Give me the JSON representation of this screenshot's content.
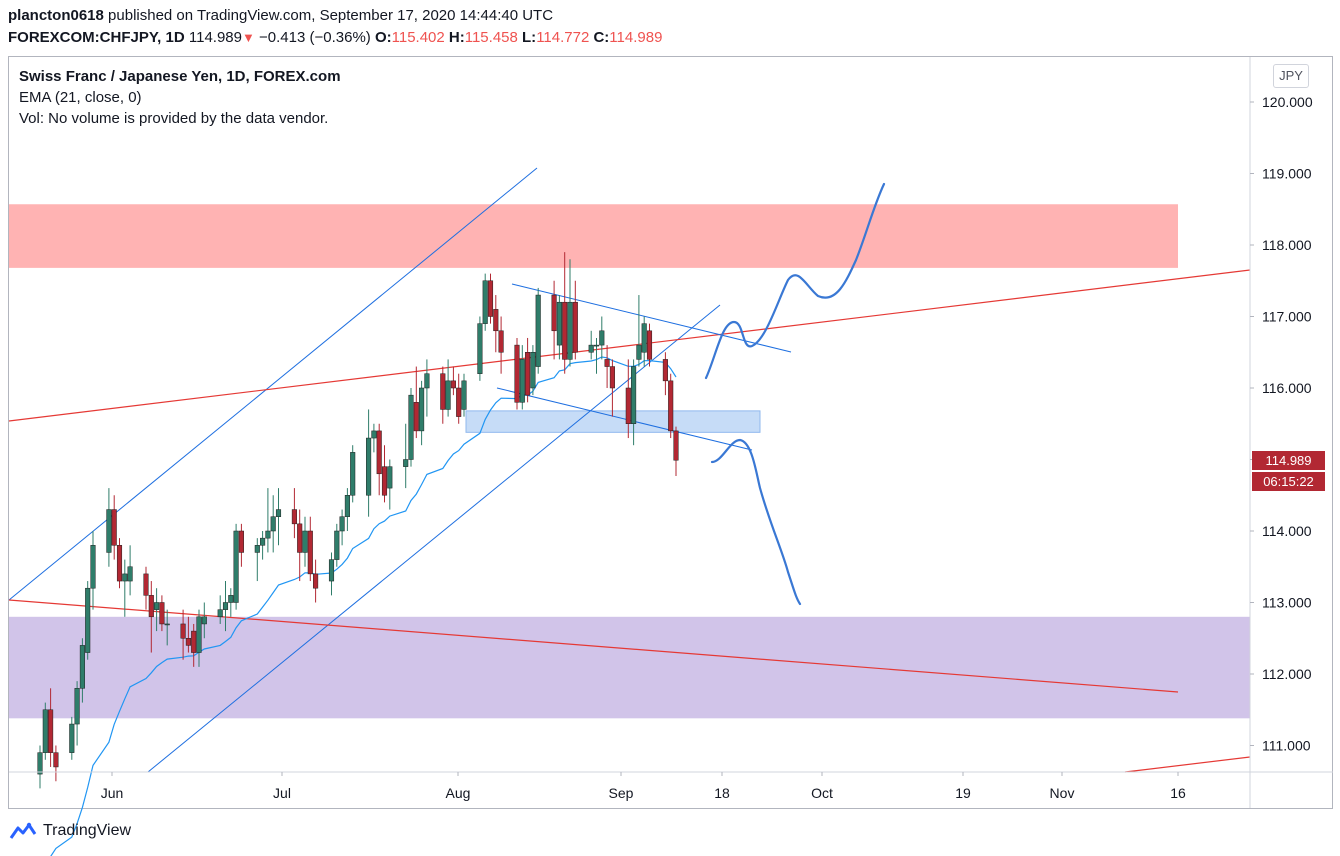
{
  "header": {
    "user": "plancton0618",
    "published": " published on TradingView.com, September 17, 2020 14:44:40 UTC",
    "symbol": "FOREXCOM:CHFJPY, 1D",
    "last": "114.989",
    "change_arrow": "▼",
    "change": "−0.413 (−0.36%)",
    "o_label": "O:",
    "o": "115.402",
    "h_label": "H:",
    "h": "115.458",
    "l_label": "L:",
    "l": "114.772",
    "c_label": "C:",
    "c": "114.989"
  },
  "legend": {
    "title": "Swiss Franc / Japanese Yen, 1D, FOREX.com",
    "ema": "EMA (21, close, 0)",
    "vol": "Vol: No volume is provided by the data vendor."
  },
  "currency_button": "JPY",
  "price_tag": {
    "price": "114.989",
    "countdown": "06:15:22"
  },
  "footer": {
    "brand": "TradingView"
  },
  "colors": {
    "up": "#26a69a",
    "down": "#ef5350",
    "ema": "#2196f3",
    "trend_blue": "#1e6fe0",
    "trend_red": "#e53935",
    "resistance_zone": "#ffb3b3",
    "support_zone": "#d1c4e9",
    "mid_zone": "#c6dcf7",
    "projection": "#3a78d4"
  },
  "chart_data": {
    "type": "candlestick",
    "symbol": "CHFJPY",
    "timeframe": "1D",
    "y_axis": {
      "ticks": [
        "120.000",
        "119.000",
        "118.000",
        "117.000",
        "116.000",
        "115.000",
        "114.000",
        "113.000",
        "112.000",
        "111.000"
      ],
      "range": [
        110.65,
        120.45
      ]
    },
    "x_axis": {
      "ticks": [
        "Jun",
        "Jul",
        "Aug",
        "Sep",
        "18",
        "Oct",
        "19",
        "Nov",
        "16"
      ]
    },
    "zones": [
      {
        "name": "resistance",
        "from": 117.68,
        "to": 118.57
      },
      {
        "name": "support",
        "from": 111.38,
        "to": 112.8
      },
      {
        "name": "retest",
        "from": 115.38,
        "to": 115.68
      }
    ],
    "ohlc_daily": [
      {
        "date": "2020-05-26",
        "o": 110.6,
        "h": 111.0,
        "l": 110.4,
        "c": 110.9
      },
      {
        "date": "2020-05-27",
        "o": 110.9,
        "h": 111.6,
        "l": 110.8,
        "c": 111.5
      },
      {
        "date": "2020-05-28",
        "o": 111.5,
        "h": 111.8,
        "l": 110.7,
        "c": 110.9
      },
      {
        "date": "2020-05-29",
        "o": 110.9,
        "h": 111.0,
        "l": 110.5,
        "c": 110.7
      },
      {
        "date": "2020-06-01",
        "o": 110.9,
        "h": 111.4,
        "l": 110.8,
        "c": 111.3
      },
      {
        "date": "2020-06-02",
        "o": 111.3,
        "h": 111.9,
        "l": 111.0,
        "c": 111.8
      },
      {
        "date": "2020-06-03",
        "o": 111.8,
        "h": 112.5,
        "l": 111.6,
        "c": 112.4
      },
      {
        "date": "2020-06-04",
        "o": 112.3,
        "h": 113.3,
        "l": 112.2,
        "c": 113.2
      },
      {
        "date": "2020-06-05",
        "o": 113.2,
        "h": 114.0,
        "l": 112.9,
        "c": 113.8
      },
      {
        "date": "2020-06-08",
        "o": 113.7,
        "h": 114.6,
        "l": 113.5,
        "c": 114.3
      },
      {
        "date": "2020-06-09",
        "o": 114.3,
        "h": 114.5,
        "l": 113.6,
        "c": 113.8
      },
      {
        "date": "2020-06-10",
        "o": 113.8,
        "h": 113.9,
        "l": 113.2,
        "c": 113.3
      },
      {
        "date": "2020-06-11",
        "o": 113.3,
        "h": 113.6,
        "l": 112.8,
        "c": 113.4
      },
      {
        "date": "2020-06-12",
        "o": 113.3,
        "h": 113.8,
        "l": 113.1,
        "c": 113.5
      },
      {
        "date": "2020-06-15",
        "o": 113.4,
        "h": 113.5,
        "l": 112.9,
        "c": 113.1
      },
      {
        "date": "2020-06-16",
        "o": 113.1,
        "h": 113.3,
        "l": 112.3,
        "c": 112.8
      },
      {
        "date": "2020-06-17",
        "o": 112.9,
        "h": 113.2,
        "l": 112.6,
        "c": 113.0
      },
      {
        "date": "2020-06-18",
        "o": 113.0,
        "h": 113.1,
        "l": 112.6,
        "c": 112.7
      },
      {
        "date": "2020-06-19",
        "o": 112.7,
        "h": 112.9,
        "l": 112.4,
        "c": 112.7
      },
      {
        "date": "2020-06-22",
        "o": 112.7,
        "h": 112.9,
        "l": 112.2,
        "c": 112.5
      },
      {
        "date": "2020-06-23",
        "o": 112.5,
        "h": 112.8,
        "l": 112.3,
        "c": 112.4
      },
      {
        "date": "2020-06-24",
        "o": 112.6,
        "h": 112.7,
        "l": 112.1,
        "c": 112.3
      },
      {
        "date": "2020-06-25",
        "o": 112.3,
        "h": 112.9,
        "l": 112.1,
        "c": 112.8
      },
      {
        "date": "2020-06-26",
        "o": 112.7,
        "h": 113.0,
        "l": 112.5,
        "c": 112.8
      },
      {
        "date": "2020-06-29",
        "o": 112.8,
        "h": 113.1,
        "l": 112.7,
        "c": 112.9
      },
      {
        "date": "2020-06-30",
        "o": 112.9,
        "h": 113.3,
        "l": 112.6,
        "c": 113.0
      },
      {
        "date": "2020-07-01",
        "o": 113.0,
        "h": 113.2,
        "l": 112.8,
        "c": 113.1
      },
      {
        "date": "2020-07-02",
        "o": 113.0,
        "h": 114.1,
        "l": 112.9,
        "c": 114.0
      },
      {
        "date": "2020-07-03",
        "o": 114.0,
        "h": 114.1,
        "l": 113.5,
        "c": 113.7
      },
      {
        "date": "2020-07-06",
        "o": 113.7,
        "h": 113.9,
        "l": 113.3,
        "c": 113.8
      },
      {
        "date": "2020-07-07",
        "o": 113.8,
        "h": 114.0,
        "l": 113.6,
        "c": 113.9
      },
      {
        "date": "2020-07-08",
        "o": 113.9,
        "h": 114.6,
        "l": 113.7,
        "c": 114.0
      },
      {
        "date": "2020-07-09",
        "o": 114.0,
        "h": 114.5,
        "l": 113.7,
        "c": 114.2
      },
      {
        "date": "2020-07-10",
        "o": 114.2,
        "h": 114.6,
        "l": 113.8,
        "c": 114.3
      },
      {
        "date": "2020-07-13",
        "o": 114.3,
        "h": 114.6,
        "l": 113.9,
        "c": 114.1
      },
      {
        "date": "2020-07-14",
        "o": 114.1,
        "h": 114.3,
        "l": 113.3,
        "c": 113.7
      },
      {
        "date": "2020-07-15",
        "o": 113.7,
        "h": 114.2,
        "l": 113.5,
        "c": 114.0
      },
      {
        "date": "2020-07-16",
        "o": 114.0,
        "h": 114.2,
        "l": 113.3,
        "c": 113.4
      },
      {
        "date": "2020-07-17",
        "o": 113.4,
        "h": 113.6,
        "l": 113.0,
        "c": 113.2
      },
      {
        "date": "2020-07-20",
        "o": 113.3,
        "h": 113.7,
        "l": 113.1,
        "c": 113.6
      },
      {
        "date": "2020-07-21",
        "o": 113.6,
        "h": 114.1,
        "l": 113.5,
        "c": 114.0
      },
      {
        "date": "2020-07-22",
        "o": 114.0,
        "h": 114.3,
        "l": 113.8,
        "c": 114.2
      },
      {
        "date": "2020-07-23",
        "o": 114.2,
        "h": 114.6,
        "l": 114.0,
        "c": 114.5
      },
      {
        "date": "2020-07-24",
        "o": 114.5,
        "h": 115.2,
        "l": 114.4,
        "c": 115.1
      },
      {
        "date": "2020-07-27",
        "o": 114.5,
        "h": 115.7,
        "l": 114.2,
        "c": 115.3
      },
      {
        "date": "2020-07-28",
        "o": 115.3,
        "h": 115.5,
        "l": 115.1,
        "c": 115.4
      },
      {
        "date": "2020-07-29",
        "o": 115.4,
        "h": 115.5,
        "l": 114.5,
        "c": 114.8
      },
      {
        "date": "2020-07-30",
        "o": 114.9,
        "h": 115.2,
        "l": 114.4,
        "c": 114.5
      },
      {
        "date": "2020-07-31",
        "o": 114.6,
        "h": 115.0,
        "l": 114.3,
        "c": 114.9
      },
      {
        "date": "2020-08-03",
        "o": 114.9,
        "h": 115.5,
        "l": 114.6,
        "c": 115.0
      },
      {
        "date": "2020-08-04",
        "o": 115.0,
        "h": 116.0,
        "l": 114.9,
        "c": 115.9
      },
      {
        "date": "2020-08-05",
        "o": 115.8,
        "h": 116.3,
        "l": 115.3,
        "c": 115.4
      },
      {
        "date": "2020-08-06",
        "o": 115.4,
        "h": 116.1,
        "l": 115.2,
        "c": 116.0
      },
      {
        "date": "2020-08-07",
        "o": 116.0,
        "h": 116.4,
        "l": 115.6,
        "c": 116.2
      },
      {
        "date": "2020-08-10",
        "o": 116.2,
        "h": 116.3,
        "l": 115.5,
        "c": 115.7
      },
      {
        "date": "2020-08-11",
        "o": 115.7,
        "h": 116.4,
        "l": 115.6,
        "c": 116.1
      },
      {
        "date": "2020-08-12",
        "o": 116.1,
        "h": 116.3,
        "l": 115.9,
        "c": 116.0
      },
      {
        "date": "2020-08-13",
        "o": 116.0,
        "h": 116.2,
        "l": 115.5,
        "c": 115.6
      },
      {
        "date": "2020-08-14",
        "o": 115.7,
        "h": 116.2,
        "l": 115.6,
        "c": 116.1
      },
      {
        "date": "2020-08-17",
        "o": 116.2,
        "h": 117.0,
        "l": 116.1,
        "c": 116.9
      },
      {
        "date": "2020-08-18",
        "o": 116.9,
        "h": 117.6,
        "l": 116.8,
        "c": 117.5
      },
      {
        "date": "2020-08-19",
        "o": 117.5,
        "h": 117.6,
        "l": 116.9,
        "c": 117.0
      },
      {
        "date": "2020-08-20",
        "o": 117.1,
        "h": 117.3,
        "l": 116.5,
        "c": 116.8
      },
      {
        "date": "2020-08-21",
        "o": 116.8,
        "h": 117.0,
        "l": 116.2,
        "c": 116.5
      },
      {
        "date": "2020-08-24",
        "o": 116.6,
        "h": 116.7,
        "l": 115.7,
        "c": 115.8
      },
      {
        "date": "2020-08-25",
        "o": 115.8,
        "h": 116.6,
        "l": 115.7,
        "c": 116.4
      },
      {
        "date": "2020-08-26",
        "o": 116.5,
        "h": 116.7,
        "l": 115.8,
        "c": 115.9
      },
      {
        "date": "2020-08-27",
        "o": 116.0,
        "h": 116.6,
        "l": 115.9,
        "c": 116.5
      },
      {
        "date": "2020-08-28",
        "o": 116.3,
        "h": 117.4,
        "l": 116.2,
        "c": 117.3
      },
      {
        "date": "2020-08-31",
        "o": 117.3,
        "h": 117.5,
        "l": 116.4,
        "c": 116.8
      },
      {
        "date": "2020-09-01",
        "o": 116.6,
        "h": 117.3,
        "l": 116.4,
        "c": 117.2
      },
      {
        "date": "2020-09-02",
        "o": 117.2,
        "h": 117.9,
        "l": 116.2,
        "c": 116.4
      },
      {
        "date": "2020-09-03",
        "o": 116.4,
        "h": 117.8,
        "l": 116.3,
        "c": 117.2
      },
      {
        "date": "2020-09-04",
        "o": 117.2,
        "h": 117.5,
        "l": 116.4,
        "c": 116.5
      },
      {
        "date": "2020-09-07",
        "o": 116.5,
        "h": 116.8,
        "l": 116.4,
        "c": 116.6
      },
      {
        "date": "2020-09-08",
        "o": 116.6,
        "h": 116.7,
        "l": 116.2,
        "c": 116.6
      },
      {
        "date": "2020-09-09",
        "o": 116.6,
        "h": 117.0,
        "l": 116.4,
        "c": 116.8
      },
      {
        "date": "2020-09-10",
        "o": 116.4,
        "h": 116.6,
        "l": 116.0,
        "c": 116.3
      },
      {
        "date": "2020-09-11",
        "o": 116.3,
        "h": 116.4,
        "l": 115.6,
        "c": 116.0
      },
      {
        "date": "2020-09-14",
        "o": 116.0,
        "h": 116.4,
        "l": 115.3,
        "c": 115.5
      },
      {
        "date": "2020-09-15",
        "o": 115.5,
        "h": 116.4,
        "l": 115.2,
        "c": 116.3
      },
      {
        "date": "2020-09-16",
        "o": 116.4,
        "h": 117.3,
        "l": 116.3,
        "c": 116.6
      },
      {
        "date": "2020-09-17",
        "o": 116.5,
        "h": 117.0,
        "l": 116.3,
        "c": 116.9
      },
      {
        "date": "2020-09-18",
        "o": 116.8,
        "h": 116.9,
        "l": 116.3,
        "c": 116.4
      },
      {
        "date": "2020-09-21",
        "o": 116.4,
        "h": 116.5,
        "l": 115.9,
        "c": 116.1
      },
      {
        "date": "2020-09-22",
        "o": 116.1,
        "h": 116.2,
        "l": 115.3,
        "c": 115.4
      },
      {
        "date": "2020-09-23",
        "o": 115.4,
        "h": 115.46,
        "l": 114.77,
        "c": 114.99
      }
    ]
  }
}
